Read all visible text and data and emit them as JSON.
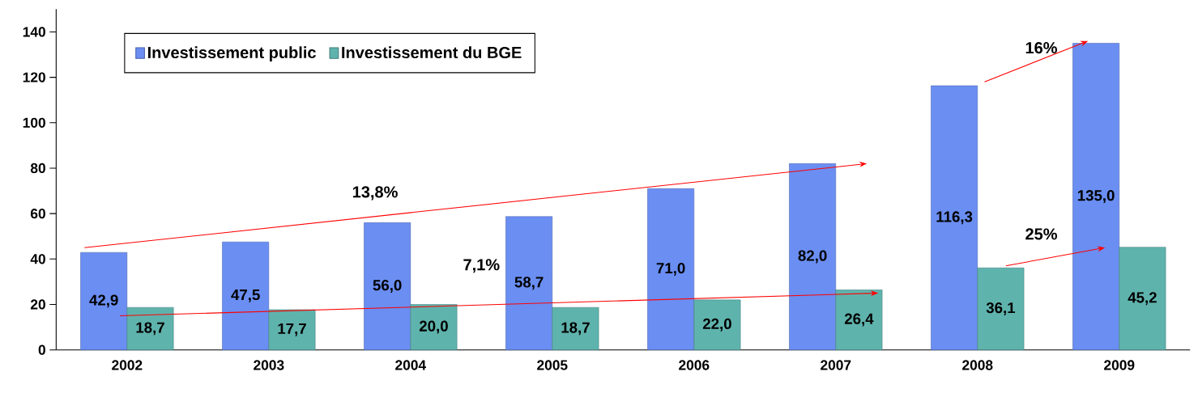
{
  "chart_data": {
    "type": "bar",
    "categories": [
      "2002",
      "2003",
      "2004",
      "2005",
      "2006",
      "2007",
      "2008",
      "2009"
    ],
    "series": [
      {
        "name": "Investissement public",
        "color": "#6a8ef2",
        "values": [
          42.9,
          47.5,
          56.0,
          58.7,
          71.0,
          82.0,
          116.3,
          135.0
        ],
        "value_labels": [
          "42,9",
          "47,5",
          "56,0",
          "58,7",
          "71,0",
          "82,0",
          "116,3",
          "135,0"
        ]
      },
      {
        "name": "Investissement du BGE",
        "color": "#5fb3ad",
        "values": [
          18.7,
          17.7,
          20.0,
          18.7,
          22.0,
          26.4,
          36.1,
          45.2
        ],
        "value_labels": [
          "18,7",
          "17,7",
          "20,0",
          "18,7",
          "22,0",
          "26,4",
          "36,1",
          "45,2"
        ]
      }
    ],
    "ylim": [
      0,
      150
    ],
    "yticks": [
      0,
      20,
      40,
      60,
      80,
      100,
      120,
      140
    ],
    "grid": false,
    "legend": "top left",
    "annotations": [
      "13,8%",
      "7,1%",
      "16%",
      "25%"
    ]
  }
}
